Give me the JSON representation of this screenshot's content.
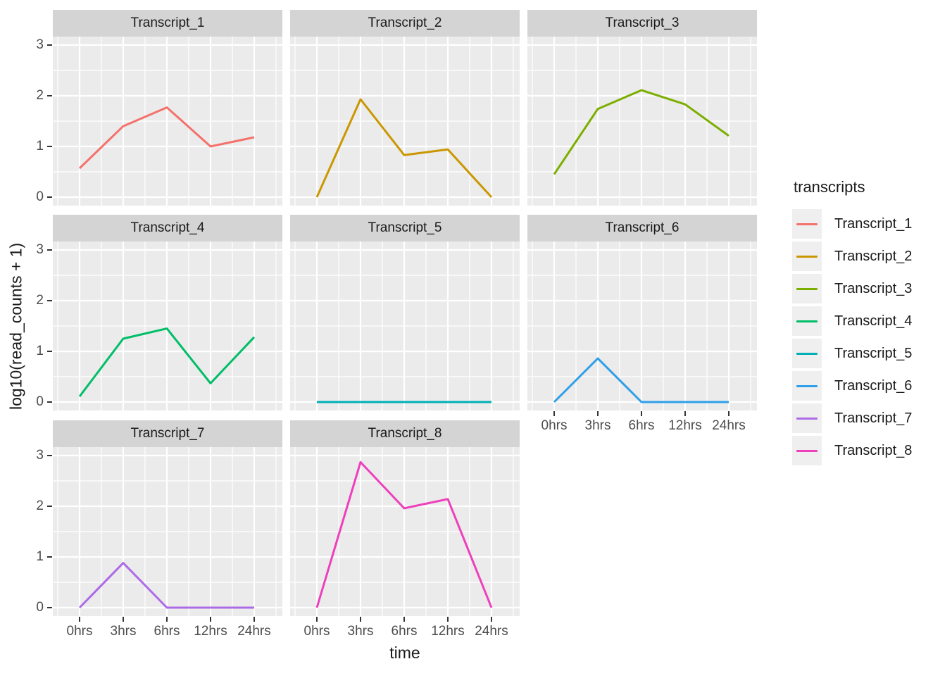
{
  "chart_data": {
    "type": "line",
    "title": "",
    "xlabel": "time",
    "ylabel": "log10(read_counts + 1)",
    "x_categories": [
      "0hrs",
      "3hrs",
      "6hrs",
      "12hrs",
      "24hrs"
    ],
    "x_tick_labels": [
      "0hrs",
      "3hrs",
      "6hrs",
      "12hrs",
      "24hrs"
    ],
    "y_tick_labels": [
      "0",
      "1",
      "2",
      "3"
    ],
    "y_ticks": [
      0,
      1,
      2,
      3
    ],
    "ylim": [
      -0.15,
      3.15
    ],
    "grid": "white major and minor gridlines on gray panels",
    "facet_layout": {
      "ncol": 3,
      "nrow": 3,
      "n_panels": 8
    },
    "legend": {
      "title": "transcripts",
      "position": "right"
    },
    "facets": [
      {
        "title": "Transcript_1",
        "color": "#F3726C",
        "values": [
          0.57,
          1.4,
          1.77,
          1.0,
          1.18
        ]
      },
      {
        "title": "Transcript_2",
        "color": "#CB9700",
        "values": [
          0.0,
          1.93,
          0.83,
          0.94,
          0.0
        ]
      },
      {
        "title": "Transcript_3",
        "color": "#7CAE00",
        "values": [
          0.45,
          1.74,
          2.11,
          1.83,
          1.21
        ]
      },
      {
        "title": "Transcript_4",
        "color": "#00BE67",
        "values": [
          0.11,
          1.25,
          1.45,
          0.37,
          1.28
        ]
      },
      {
        "title": "Transcript_5",
        "color": "#00AFB4",
        "values": [
          0.0,
          0.0,
          0.0,
          0.0,
          0.0
        ]
      },
      {
        "title": "Transcript_6",
        "color": "#2E9FE8",
        "values": [
          0.0,
          0.86,
          0.0,
          0.0,
          0.0
        ]
      },
      {
        "title": "Transcript_7",
        "color": "#AE6BE8",
        "values": [
          0.0,
          0.88,
          0.0,
          0.0,
          0.0
        ]
      },
      {
        "title": "Transcript_8",
        "color": "#EE3FBC",
        "values": [
          0.0,
          2.87,
          1.96,
          2.14,
          0.0
        ]
      }
    ],
    "style_colors": {
      "panel_bg": "#EBEBEB",
      "strip_bg": "#D4D4D4",
      "gridline": "#FFFFFF",
      "tick": "#333333",
      "axis_text": "#4D4D4D",
      "title_text": "#1A1A1A",
      "legend_key_bg": "#EFEFEF"
    }
  }
}
